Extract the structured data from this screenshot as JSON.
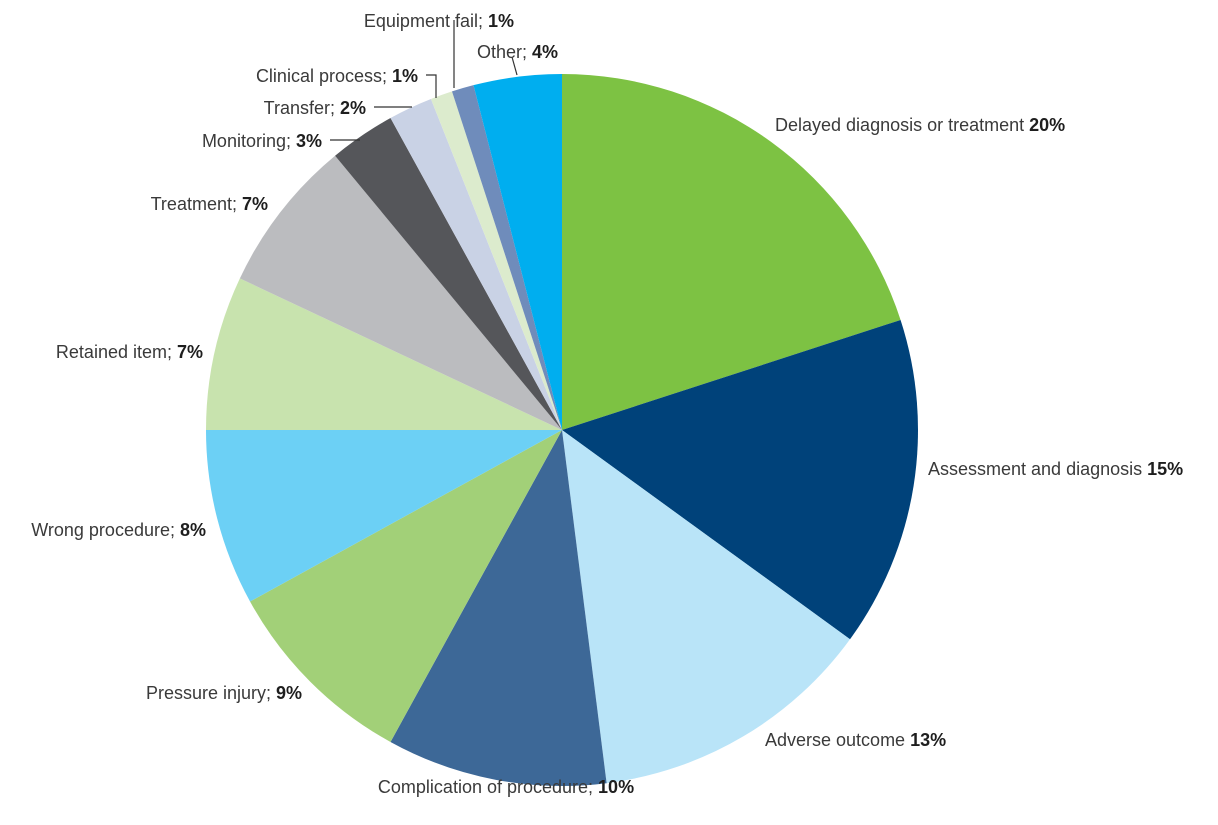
{
  "chart_data": {
    "type": "pie",
    "start": "12 o'clock",
    "direction": "clockwise",
    "slices": [
      {
        "label": "Delayed diagnosis or treatment",
        "sep": " ",
        "value": 20,
        "value_label": "20%",
        "color": "#7dc243"
      },
      {
        "label": "Assessment and diagnosis",
        "sep": " ",
        "value": 15,
        "value_label": "15%",
        "color": "#00427a"
      },
      {
        "label": "Adverse outcome",
        "sep": "  ",
        "value": 13,
        "value_label": "13%",
        "color": "#b9e4f8"
      },
      {
        "label": "Complication of procedure",
        "sep": "; ",
        "value": 10,
        "value_label": "10%",
        "color": "#3d6897"
      },
      {
        "label": "Pressure injury",
        "sep": "; ",
        "value": 9,
        "value_label": "9%",
        "color": "#a2d078"
      },
      {
        "label": "Wrong procedure",
        "sep": "; ",
        "value": 8,
        "value_label": "8%",
        "color": "#6cd0f5"
      },
      {
        "label": "Retained item",
        "sep": "; ",
        "value": 7,
        "value_label": "7%",
        "color": "#c8e3ae"
      },
      {
        "label": "Treatment",
        "sep": "; ",
        "value": 7,
        "value_label": "7%",
        "color": "#bbbcbf"
      },
      {
        "label": "Monitoring",
        "sep": "; ",
        "value": 3,
        "value_label": "3%",
        "color": "#55565a"
      },
      {
        "label": "Transfer",
        "sep": "; ",
        "value": 2,
        "value_label": "2%",
        "color": "#c9d2e5"
      },
      {
        "label": "Clinical process",
        "sep": "; ",
        "value": 1,
        "value_label": "1%",
        "color": "#dcebcd"
      },
      {
        "label": "Equipment fail",
        "sep": "; ",
        "value": 1,
        "value_label": "1%",
        "color": "#6f8cbb"
      },
      {
        "label": "Other",
        "sep": "; ",
        "value": 4,
        "value_label": "4%",
        "color": "#00aeef"
      }
    ]
  }
}
